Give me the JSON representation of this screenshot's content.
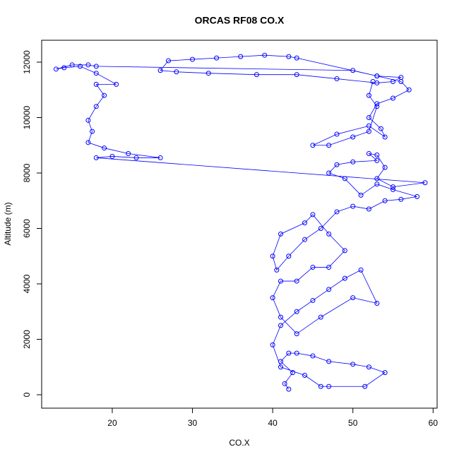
{
  "chart_data": {
    "type": "line",
    "markers": true,
    "title": "ORCAS RF08 CO.X",
    "x_label": "CO.X",
    "y_label": "Altitude (m)",
    "color": "#0000ff",
    "xlim": [
      11.2,
      60.5
    ],
    "ylim": [
      -484,
      12790
    ],
    "xticks": [
      20,
      30,
      40,
      50,
      60
    ],
    "yticks": [
      0,
      2000,
      4000,
      6000,
      8000,
      10000,
      12000
    ],
    "x": [
      42,
      41.5,
      42.5,
      41,
      42,
      43,
      45,
      47,
      50,
      52,
      54,
      51.5,
      47,
      46,
      44,
      41,
      40,
      41,
      43,
      45,
      47,
      49,
      51,
      53,
      50,
      46,
      43,
      41,
      40,
      41,
      43,
      45,
      47,
      49,
      47,
      45,
      44,
      41,
      40,
      40.5,
      42,
      44,
      46,
      48,
      50,
      52,
      54,
      56,
      58,
      55,
      53,
      51,
      49,
      47,
      48,
      50,
      53,
      52,
      53,
      54,
      53,
      55,
      59,
      18,
      20,
      23,
      26,
      22,
      19,
      17,
      17.5,
      17,
      18,
      19,
      18,
      20.5,
      18,
      16,
      14,
      13,
      15,
      17,
      18,
      50,
      53,
      56,
      55,
      53,
      48,
      43,
      38,
      32,
      28,
      26,
      27,
      30,
      33,
      36,
      39,
      42,
      43,
      53,
      56,
      57,
      55,
      53,
      52,
      53.5,
      54,
      52,
      48,
      45,
      47,
      50,
      52,
      53,
      52,
      52.5
    ],
    "values": [
      200,
      400,
      800,
      1200,
      1500,
      1500,
      1400,
      1200,
      1100,
      1000,
      800,
      300,
      300,
      300,
      700,
      1000,
      1800,
      2500,
      3000,
      3400,
      3800,
      4200,
      4500,
      3300,
      3500,
      2800,
      2200,
      2800,
      3500,
      4100,
      4100,
      4600,
      4600,
      5200,
      5800,
      6500,
      6200,
      5800,
      5000,
      4500,
      5000,
      5600,
      6000,
      6600,
      6800,
      6700,
      7000,
      7050,
      7150,
      7400,
      7600,
      7200,
      7800,
      8000,
      8300,
      8400,
      8450,
      8700,
      8650,
      8200,
      7800,
      7500,
      7650,
      8550,
      8600,
      8550,
      8550,
      8700,
      8900,
      9100,
      9500,
      9900,
      10400,
      10800,
      11200,
      11200,
      11600,
      11850,
      11800,
      11750,
      11900,
      11900,
      11850,
      11700,
      11500,
      11450,
      11300,
      11250,
      11400,
      11550,
      11550,
      11600,
      11650,
      11700,
      12050,
      12100,
      12150,
      12200,
      12250,
      12200,
      12150,
      11500,
      11300,
      11000,
      10700,
      10500,
      10000,
      9600,
      9300,
      9700,
      9400,
      9000,
      9000,
      9300,
      9500,
      10400,
      10800,
      11300
    ]
  }
}
